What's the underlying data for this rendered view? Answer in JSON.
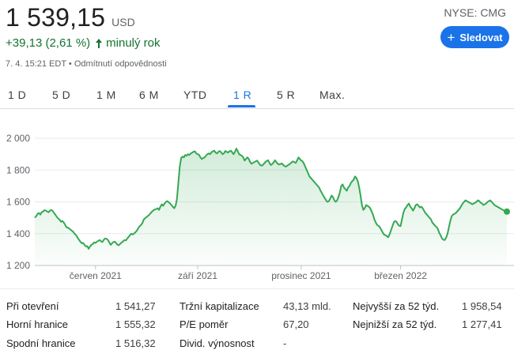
{
  "quote": {
    "price": "1 539,15",
    "currency": "USD",
    "change": "+39,13 (2,61 %)",
    "period": "minulý rok",
    "timestamp": "7. 4. 15:21 EDT",
    "separator": "•",
    "disclaimer": "Odmítnutí odpovědnosti",
    "ticker": "NYSE: CMG",
    "positive_color": "#137333"
  },
  "follow_button": {
    "label": "Sledovat",
    "icon": "plus-icon",
    "color": "#1a73e8"
  },
  "tabs": [
    {
      "label": "1 D",
      "active": false
    },
    {
      "label": "5 D",
      "active": false
    },
    {
      "label": "1 M",
      "active": false
    },
    {
      "label": "6 M",
      "active": false
    },
    {
      "label": "YTD",
      "active": false
    },
    {
      "label": "1 R",
      "active": true
    },
    {
      "label": "5 R",
      "active": false
    },
    {
      "label": "Max.",
      "active": false
    }
  ],
  "chart_data": {
    "type": "area",
    "title": "",
    "xlabel": "",
    "ylabel": "",
    "ylim": [
      1200,
      2000
    ],
    "yticks": [
      1200,
      1400,
      1600,
      1800,
      2000
    ],
    "ytick_labels": [
      "1 200",
      "1 400",
      "1 600",
      "1 800",
      "2 000"
    ],
    "xticks": [
      {
        "label": "červen 2021",
        "index": 44
      },
      {
        "label": "září 2021",
        "index": 118
      },
      {
        "label": "prosinec 2021",
        "index": 193
      },
      {
        "label": "březen 2022",
        "index": 265
      }
    ],
    "line_color": "#34a853",
    "grid": true,
    "series": [
      {
        "values": [
          1500,
          1510,
          1525,
          1530,
          1520,
          1535,
          1540,
          1548,
          1545,
          1540,
          1535,
          1545,
          1550,
          1542,
          1530,
          1518,
          1505,
          1495,
          1488,
          1475,
          1480,
          1470,
          1455,
          1440,
          1438,
          1432,
          1425,
          1418,
          1410,
          1398,
          1390,
          1375,
          1362,
          1350,
          1340,
          1342,
          1330,
          1320,
          1322,
          1305,
          1320,
          1330,
          1335,
          1345,
          1342,
          1350,
          1355,
          1360,
          1352,
          1348,
          1362,
          1370,
          1368,
          1360,
          1345,
          1330,
          1340,
          1348,
          1350,
          1340,
          1330,
          1328,
          1338,
          1345,
          1352,
          1360,
          1358,
          1370,
          1380,
          1392,
          1400,
          1395,
          1402,
          1410,
          1420,
          1435,
          1448,
          1455,
          1468,
          1490,
          1498,
          1505,
          1512,
          1520,
          1530,
          1540,
          1548,
          1552,
          1555,
          1560,
          1550,
          1570,
          1585,
          1575,
          1590,
          1600,
          1605,
          1598,
          1590,
          1580,
          1570,
          1560,
          1575,
          1620,
          1720,
          1820,
          1875,
          1885,
          1880,
          1895,
          1890,
          1900,
          1895,
          1905,
          1910,
          1915,
          1918,
          1905,
          1900,
          1895,
          1880,
          1870,
          1875,
          1880,
          1890,
          1900,
          1905,
          1900,
          1912,
          1918,
          1922,
          1910,
          1905,
          1915,
          1920,
          1912,
          1900,
          1905,
          1920,
          1915,
          1910,
          1918,
          1922,
          1912,
          1900,
          1915,
          1935,
          1920,
          1900,
          1895,
          1890,
          1880,
          1860,
          1870,
          1880,
          1870,
          1850,
          1840,
          1845,
          1850,
          1855,
          1860,
          1848,
          1835,
          1828,
          1830,
          1840,
          1850,
          1858,
          1862,
          1845,
          1832,
          1838,
          1848,
          1862,
          1850,
          1840,
          1835,
          1838,
          1842,
          1832,
          1825,
          1822,
          1828,
          1835,
          1840,
          1848,
          1855,
          1850,
          1845,
          1860,
          1880,
          1870,
          1860,
          1855,
          1840,
          1820,
          1800,
          1780,
          1760,
          1750,
          1740,
          1730,
          1720,
          1710,
          1700,
          1690,
          1670,
          1655,
          1640,
          1625,
          1610,
          1600,
          1605,
          1620,
          1640,
          1630,
          1610,
          1600,
          1610,
          1630,
          1660,
          1700,
          1710,
          1690,
          1680,
          1670,
          1690,
          1700,
          1720,
          1730,
          1740,
          1760,
          1750,
          1730,
          1690,
          1640,
          1580,
          1550,
          1560,
          1580,
          1575,
          1570,
          1560,
          1540,
          1520,
          1490,
          1470,
          1455,
          1450,
          1440,
          1425,
          1408,
          1395,
          1390,
          1385,
          1378,
          1395,
          1420,
          1445,
          1470,
          1480,
          1475,
          1460,
          1450,
          1448,
          1490,
          1530,
          1555,
          1565,
          1580,
          1590,
          1570,
          1560,
          1545,
          1560,
          1580,
          1585,
          1575,
          1565,
          1570,
          1560,
          1545,
          1530,
          1520,
          1510,
          1500,
          1490,
          1470,
          1460,
          1450,
          1442,
          1430,
          1405,
          1390,
          1370,
          1362,
          1360,
          1375,
          1400,
          1440,
          1480,
          1510,
          1520,
          1525,
          1530,
          1540,
          1550,
          1560,
          1575,
          1590,
          1600,
          1610,
          1605,
          1600,
          1595,
          1590,
          1585,
          1590,
          1595,
          1600,
          1610,
          1605,
          1595,
          1590,
          1580,
          1585,
          1590,
          1600,
          1605,
          1610,
          1600,
          1590,
          1580,
          1575,
          1570,
          1565,
          1560,
          1555,
          1550,
          1545,
          1540,
          1539.15
        ]
      }
    ]
  },
  "stats": {
    "col1": [
      {
        "label": "Při otevření",
        "value": "1 541,27"
      },
      {
        "label": "Horní hranice",
        "value": "1 555,32"
      },
      {
        "label": "Spodní hranice",
        "value": "1 516,32"
      }
    ],
    "col2": [
      {
        "label": "Tržní kapitalizace",
        "value": "43,13 mld."
      },
      {
        "label": "P/E poměr",
        "value": "67,20"
      },
      {
        "label": "Divid. výnosnost",
        "value": "-"
      }
    ],
    "col3": [
      {
        "label": "Nejvyšší za 52 týd.",
        "value": "1 958,54"
      },
      {
        "label": "Nejnižší za 52 týd.",
        "value": "1 277,41"
      }
    ]
  }
}
